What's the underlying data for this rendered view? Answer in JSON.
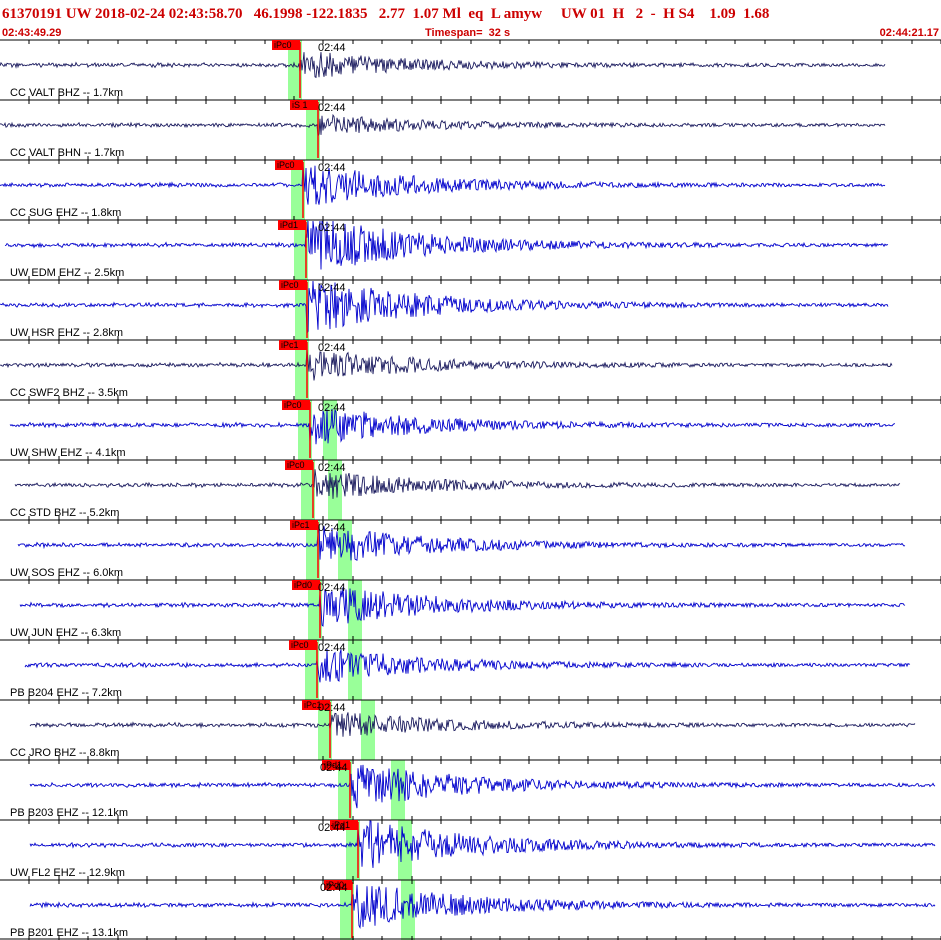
{
  "header": {
    "event_line": "61370191 UW 2018-02-24 02:43:58.70   46.1998 -122.1835   2.77  1.07 Ml  eq  L amyw     UW 01  H   2  -  H S4    1.09  1.68",
    "start_time": "02:43:49.29",
    "timespan": "Timespan=  32 s",
    "end_time": "02:44:21.17"
  },
  "colors": {
    "header_red": "#cc0000",
    "trace_blue": "#0000cc",
    "trace_navy": "#1a1a5e",
    "pick_red": "#ff0000",
    "window_green": "#99ff99"
  },
  "traces": [
    {
      "label": "CC VALT BHZ -- 1.7km",
      "time": "02:44",
      "pick": "iPc0",
      "color": "navy"
    },
    {
      "label": "CC VALT BHN -- 1.7km",
      "time": "02:44",
      "pick": "iS 1",
      "color": "navy"
    },
    {
      "label": "CC SUG EHZ -- 1.8km",
      "time": "02:44",
      "pick": "iPc0",
      "color": "blue"
    },
    {
      "label": "UW EDM EHZ -- 2.5km",
      "time": "02:44",
      "pick": "iPd1",
      "color": "blue"
    },
    {
      "label": "UW HSR EHZ -- 2.8km",
      "time": "02:44",
      "pick": "iPc0",
      "color": "blue"
    },
    {
      "label": "CC SWF2 BHZ -- 3.5km",
      "time": "02:44",
      "pick": "iPc1",
      "color": "navy"
    },
    {
      "label": "UW SHW EHZ -- 4.1km",
      "time": "02:44",
      "pick": "iPc0",
      "color": "blue"
    },
    {
      "label": "CC STD BHZ -- 5.2km",
      "time": "02:44",
      "pick": "iPc0",
      "color": "navy"
    },
    {
      "label": "UW SOS EHZ -- 6.0km",
      "time": "02:44",
      "pick": "iPc1",
      "color": "blue"
    },
    {
      "label": "UW JUN EHZ -- 6.3km",
      "time": "02:44",
      "pick": "iPd0",
      "color": "blue"
    },
    {
      "label": "PB B204 EHZ -- 7.2km",
      "time": "02:44",
      "pick": "iPc0",
      "color": "blue"
    },
    {
      "label": "CC JRO BHZ -- 8.8km",
      "time": "02:44",
      "pick": "iPc1",
      "color": "navy"
    },
    {
      "label": "PB B203 EHZ -- 12.1km",
      "time": "02:44",
      "pick": "iPd1",
      "color": "blue"
    },
    {
      "label": "UW FL2 EHZ -- 12.9km",
      "time": "02:44",
      "pick": "iPd1",
      "color": "blue"
    },
    {
      "label": "PB B201 EHZ -- 13.1km",
      "time": "02:44",
      "pick": "iPd0",
      "color": "blue"
    }
  ]
}
